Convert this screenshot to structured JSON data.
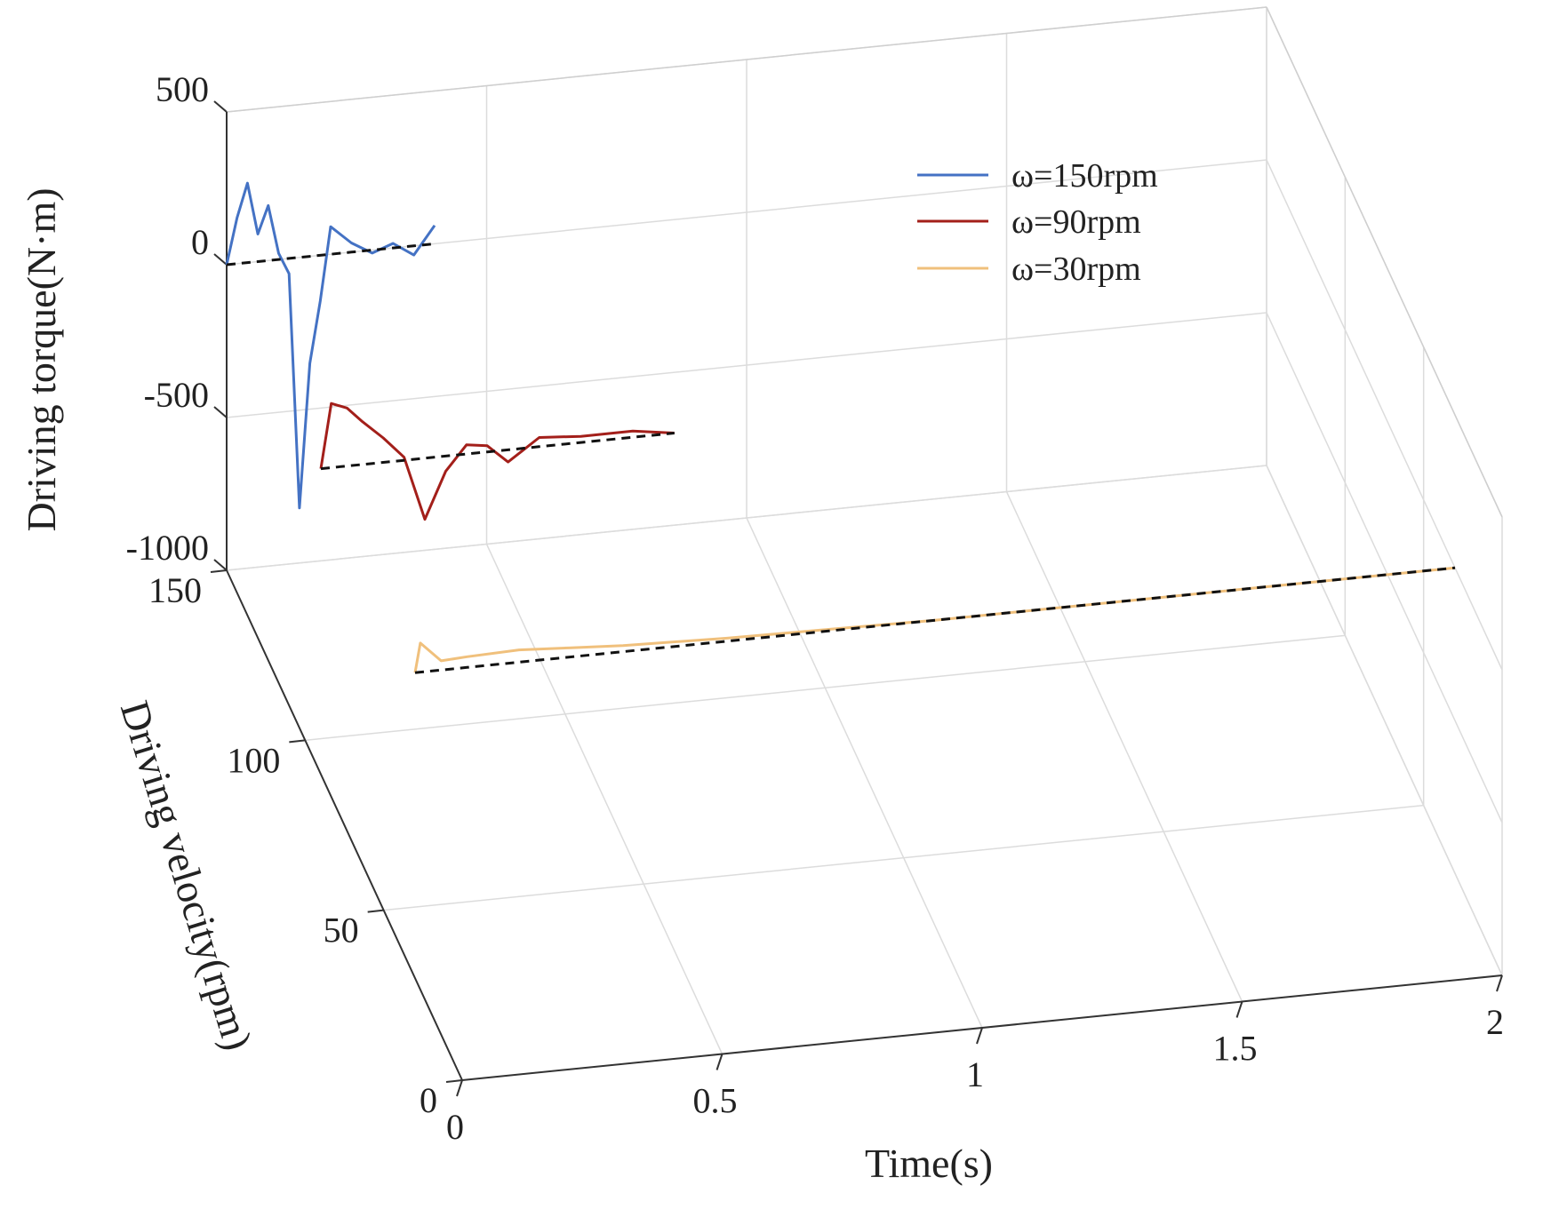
{
  "chart_data": {
    "type": "line",
    "projection": "3d",
    "title": "",
    "xlabel": "Time(s)",
    "ylabel": "Driving velocity(rpm)",
    "zlabel": "Driving torque(N·m)",
    "xlim": [
      0,
      2
    ],
    "ylim": [
      0,
      150
    ],
    "zlim": [
      -1000,
      500
    ],
    "x_ticks": [
      0,
      0.5,
      1,
      1.5,
      2
    ],
    "x_tick_labels": [
      "0",
      "0.5",
      "1",
      "1.5",
      "2"
    ],
    "y_ticks": [
      0,
      50,
      100,
      150
    ],
    "y_tick_labels": [
      "0",
      "50",
      "100",
      "150"
    ],
    "z_ticks": [
      -1000,
      -500,
      0,
      500
    ],
    "z_tick_labels": [
      "-1000",
      "-500",
      "0",
      "500"
    ],
    "grid": true,
    "legend_position": "top-right",
    "series": [
      {
        "name": "ω=150rpm",
        "color": "#4472c4",
        "velocity": 150,
        "time": [
          0,
          0.02,
          0.04,
          0.06,
          0.08,
          0.1,
          0.12,
          0.14,
          0.16,
          0.18,
          0.2,
          0.24,
          0.28,
          0.32,
          0.36,
          0.4
        ],
        "torque": [
          0,
          150,
          260,
          90,
          180,
          20,
          -50,
          -820,
          -350,
          -150,
          90,
          30,
          -10,
          15,
          -30,
          60
        ],
        "reference_torque": [
          0,
          0,
          0,
          0,
          0,
          0,
          0,
          0,
          0,
          0,
          0,
          0,
          0,
          0,
          0,
          0
        ]
      },
      {
        "name": "ω=90rpm",
        "color": "#a31f1a",
        "velocity": 90,
        "time": [
          0,
          0.02,
          0.05,
          0.08,
          0.12,
          0.16,
          0.2,
          0.24,
          0.28,
          0.32,
          0.36,
          0.42,
          0.5,
          0.6,
          0.68
        ],
        "torque": [
          0,
          210,
          190,
          140,
          80,
          10,
          -200,
          -50,
          30,
          20,
          -40,
          30,
          20,
          20,
          0
        ],
        "reference_torque": [
          0,
          0,
          0,
          0,
          0,
          0,
          0,
          0,
          0,
          0,
          0,
          0,
          0,
          0,
          0
        ]
      },
      {
        "name": "ω=30rpm",
        "color": "#f0c07c",
        "velocity": 30,
        "time": [
          0,
          0.01,
          0.05,
          0.1,
          0.2,
          0.3,
          0.4,
          0.6,
          0.8,
          1.0,
          1.2,
          1.4,
          1.6,
          1.8,
          2.0
        ],
        "torque": [
          0,
          95,
          30,
          35,
          40,
          30,
          20,
          10,
          5,
          0,
          0,
          0,
          0,
          0,
          0
        ],
        "reference_torque": [
          0,
          0,
          0,
          0,
          0,
          0,
          0,
          0,
          0,
          0,
          0,
          0,
          0,
          0,
          0
        ]
      }
    ]
  }
}
